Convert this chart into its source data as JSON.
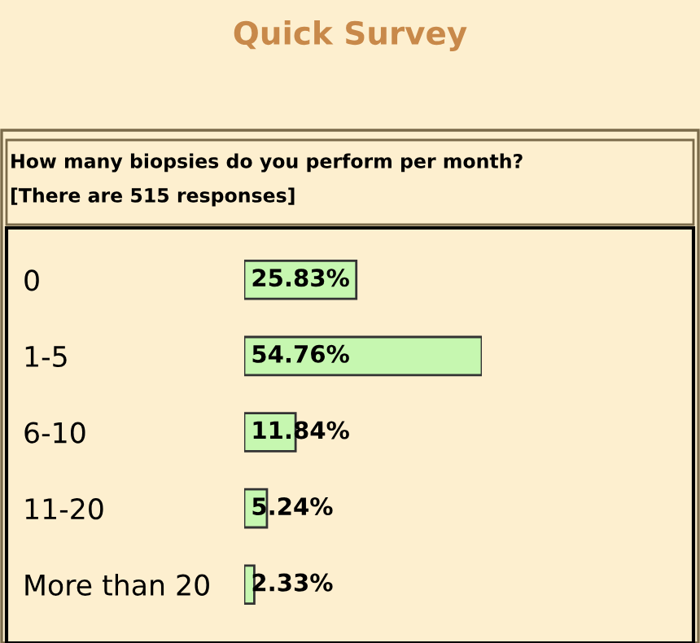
{
  "chart_data": {
    "type": "bar",
    "orientation": "horizontal",
    "title": "Quick Survey",
    "subtitle": "How many biopsies do you perform per month?",
    "annotations": [
      "[There are 515 responses]"
    ],
    "categories": [
      "0",
      "1-5",
      "6-10",
      "11-20",
      "More than 20"
    ],
    "values": [
      25.83,
      54.76,
      11.84,
      5.24,
      2.33
    ],
    "value_labels": [
      "25.83%",
      "54.76%",
      "11.84%",
      "5.24%",
      "2.33%"
    ],
    "color": "#c6f7b0",
    "tick_labels": "y",
    "grid": false,
    "legend": false
  }
}
